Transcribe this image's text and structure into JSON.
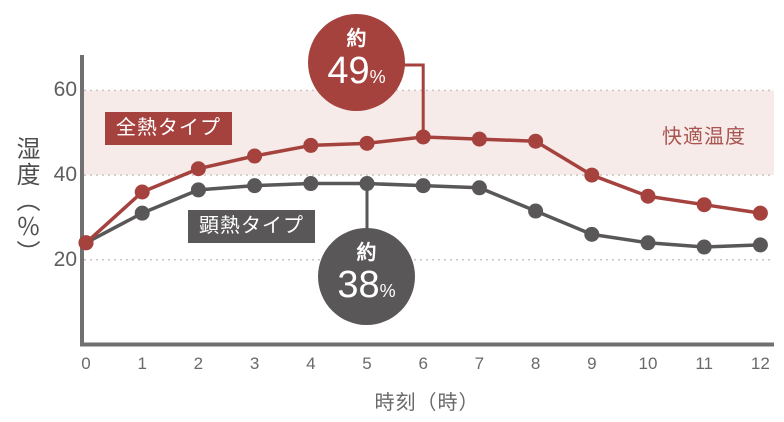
{
  "chart_data": {
    "type": "line",
    "xlabel": "時刻（時）",
    "ylabel": "湿度（％）",
    "x": [
      0,
      1,
      2,
      3,
      4,
      5,
      6,
      7,
      8,
      9,
      10,
      11,
      12
    ],
    "x_tick_labels": [
      "0",
      "1",
      "2",
      "3",
      "4",
      "5",
      "6",
      "7",
      "8",
      "9",
      "10",
      "11",
      "12"
    ],
    "y_ticks": [
      20,
      40,
      60
    ],
    "ylim": [
      0,
      65
    ],
    "xlim": [
      0,
      12
    ],
    "grid": "dashed horizontal lines at 20, 40, 60",
    "legend_position": "on-chart label boxes",
    "series": [
      {
        "name": "顕熱タイプ",
        "color": "#595757",
        "values": [
          24,
          31,
          36.5,
          37.5,
          38,
          38,
          37.5,
          37,
          31.5,
          26,
          24,
          23,
          23.5
        ]
      },
      {
        "name": "全熱タイプ",
        "color": "#a6423e",
        "values": [
          24,
          36,
          41.5,
          44.5,
          47,
          47.5,
          49,
          48.5,
          48,
          40,
          35,
          33,
          31
        ]
      }
    ],
    "comfort_band": {
      "label": "快適温度",
      "from": 40,
      "to": 60,
      "fill": "#f6ebe8",
      "label_color": "#a85450"
    },
    "annotations": [
      {
        "prefix": "約",
        "value": "49",
        "unit": "%",
        "x": 6,
        "series": "全熱タイプ",
        "color": "#a6423e"
      },
      {
        "prefix": "約",
        "value": "38",
        "unit": "%",
        "x": 5,
        "series": "顕熱タイプ",
        "color": "#595757"
      }
    ]
  },
  "axis_style": {
    "axis_color": "#716f6f",
    "tick_color": "#5f5d5d",
    "grid_color": "#ccc5c2"
  }
}
